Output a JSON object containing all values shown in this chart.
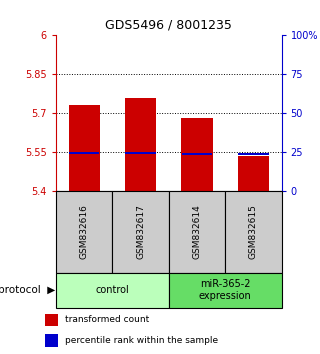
{
  "title": "GDS5496 / 8001235",
  "samples": [
    "GSM832616",
    "GSM832617",
    "GSM832614",
    "GSM832615"
  ],
  "red_values": [
    5.73,
    5.76,
    5.68,
    5.535
  ],
  "blue_values": [
    5.548,
    5.548,
    5.543,
    5.543
  ],
  "ymin": 5.4,
  "ymax": 6.0,
  "yticks_left": [
    5.4,
    5.55,
    5.7,
    5.85,
    6.0
  ],
  "yticks_right": [
    0,
    25,
    50,
    75,
    100
  ],
  "bar_color": "#cc0000",
  "blue_color": "#0000cc",
  "control_color": "#bbffbb",
  "mir_color": "#66dd66",
  "sample_box_color": "#cccccc",
  "legend_red_label": "transformed count",
  "legend_blue_label": "percentile rank within the sample",
  "protocol_label": "protocol"
}
